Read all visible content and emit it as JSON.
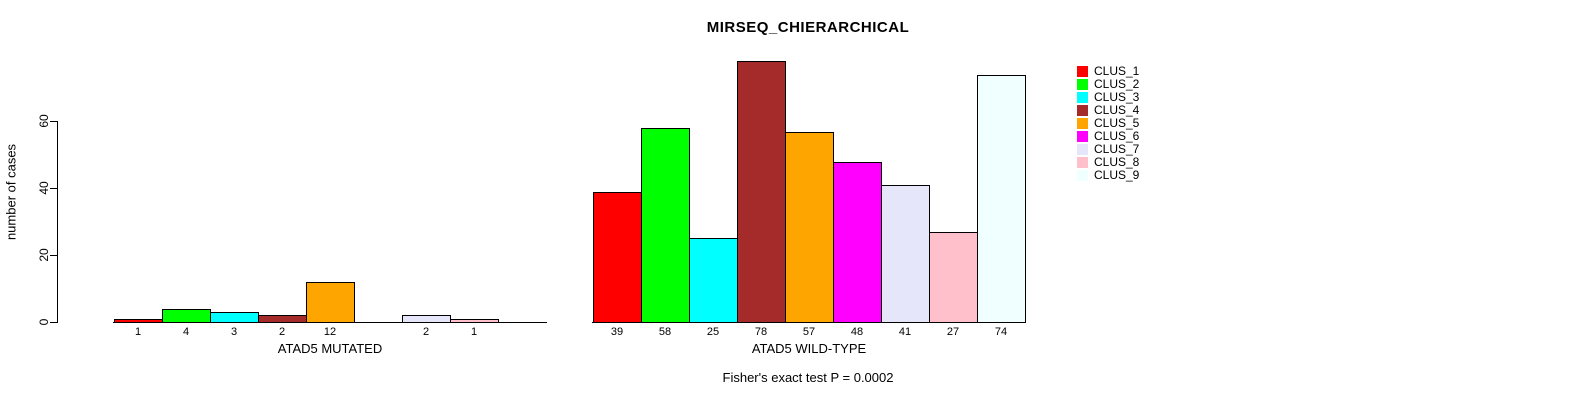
{
  "chart_data": {
    "type": "bar",
    "title": "MIRSEQ_CHIERARCHICAL",
    "ylabel": "number of cases",
    "yticks": [
      0,
      20,
      40,
      60
    ],
    "ylim": [
      0,
      79
    ],
    "grid": false,
    "legend_position": "right",
    "footnote": "Fisher's exact test P = 0.0002",
    "clusters": [
      {
        "name": "CLUS_1",
        "color": "#FF0000"
      },
      {
        "name": "CLUS_2",
        "color": "#00FF00"
      },
      {
        "name": "CLUS_3",
        "color": "#00FFFF"
      },
      {
        "name": "CLUS_4",
        "color": "#A52A2A"
      },
      {
        "name": "CLUS_5",
        "color": "#FFA500"
      },
      {
        "name": "CLUS_6",
        "color": "#FF00FF"
      },
      {
        "name": "CLUS_7",
        "color": "#E6E6FA"
      },
      {
        "name": "CLUS_8",
        "color": "#FFC0CB"
      },
      {
        "name": "CLUS_9",
        "color": "#F0FFFF"
      }
    ],
    "groups": [
      {
        "label": "ATAD5 MUTATED",
        "values": [
          1,
          4,
          3,
          2,
          12,
          0,
          2,
          1,
          0
        ]
      },
      {
        "label": "ATAD5 WILD-TYPE",
        "values": [
          39,
          58,
          25,
          78,
          57,
          48,
          41,
          27,
          74
        ]
      }
    ],
    "colors": {
      "axis": "#000000",
      "text": "#000000",
      "background": "#ffffff"
    }
  }
}
